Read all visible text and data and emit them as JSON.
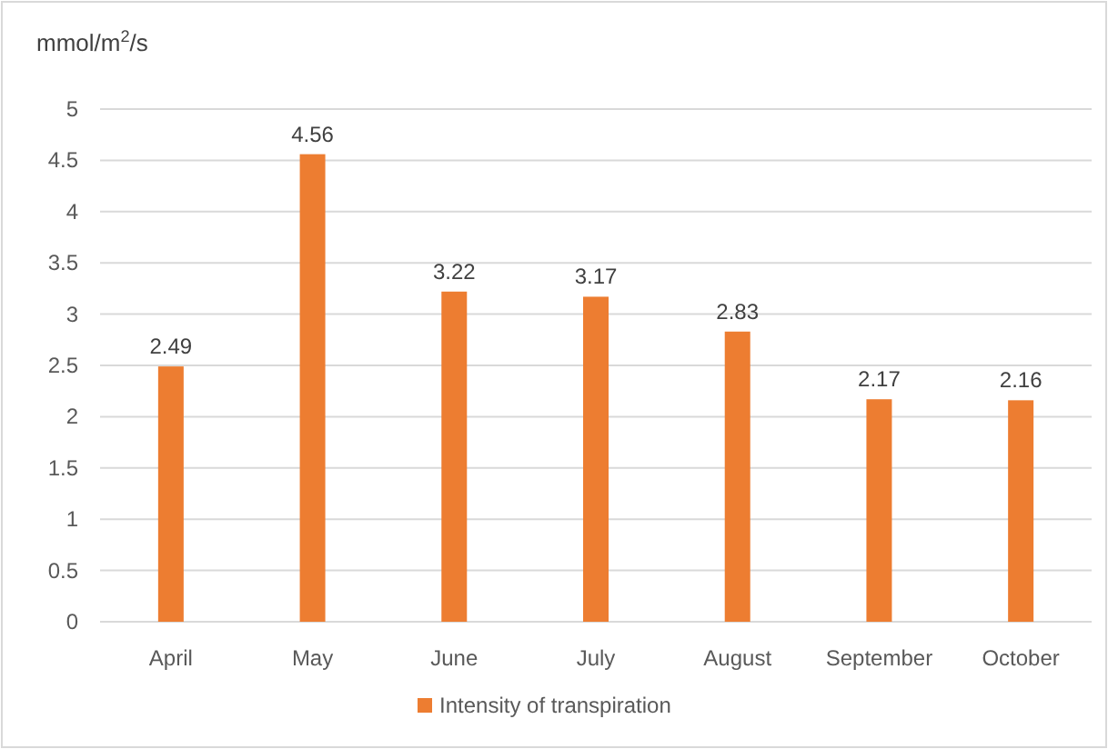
{
  "chart_data": {
    "type": "bar",
    "ylabel": "mmol/m$^{2}$/s",
    "categories": [
      "April",
      "May",
      "June",
      "July",
      "August",
      "September",
      "October"
    ],
    "series": [
      {
        "name": "Intensity of transpiration",
        "color": "#ed7d31",
        "values": [
          2.49,
          4.56,
          3.22,
          3.17,
          2.83,
          2.17,
          2.16
        ]
      }
    ],
    "ylim": [
      0,
      5
    ],
    "yticks": [
      0,
      0.5,
      1,
      1.5,
      2,
      2.5,
      3,
      3.5,
      4,
      4.5,
      5
    ],
    "grid": "y",
    "legend": "bottom",
    "data_labels": true
  }
}
